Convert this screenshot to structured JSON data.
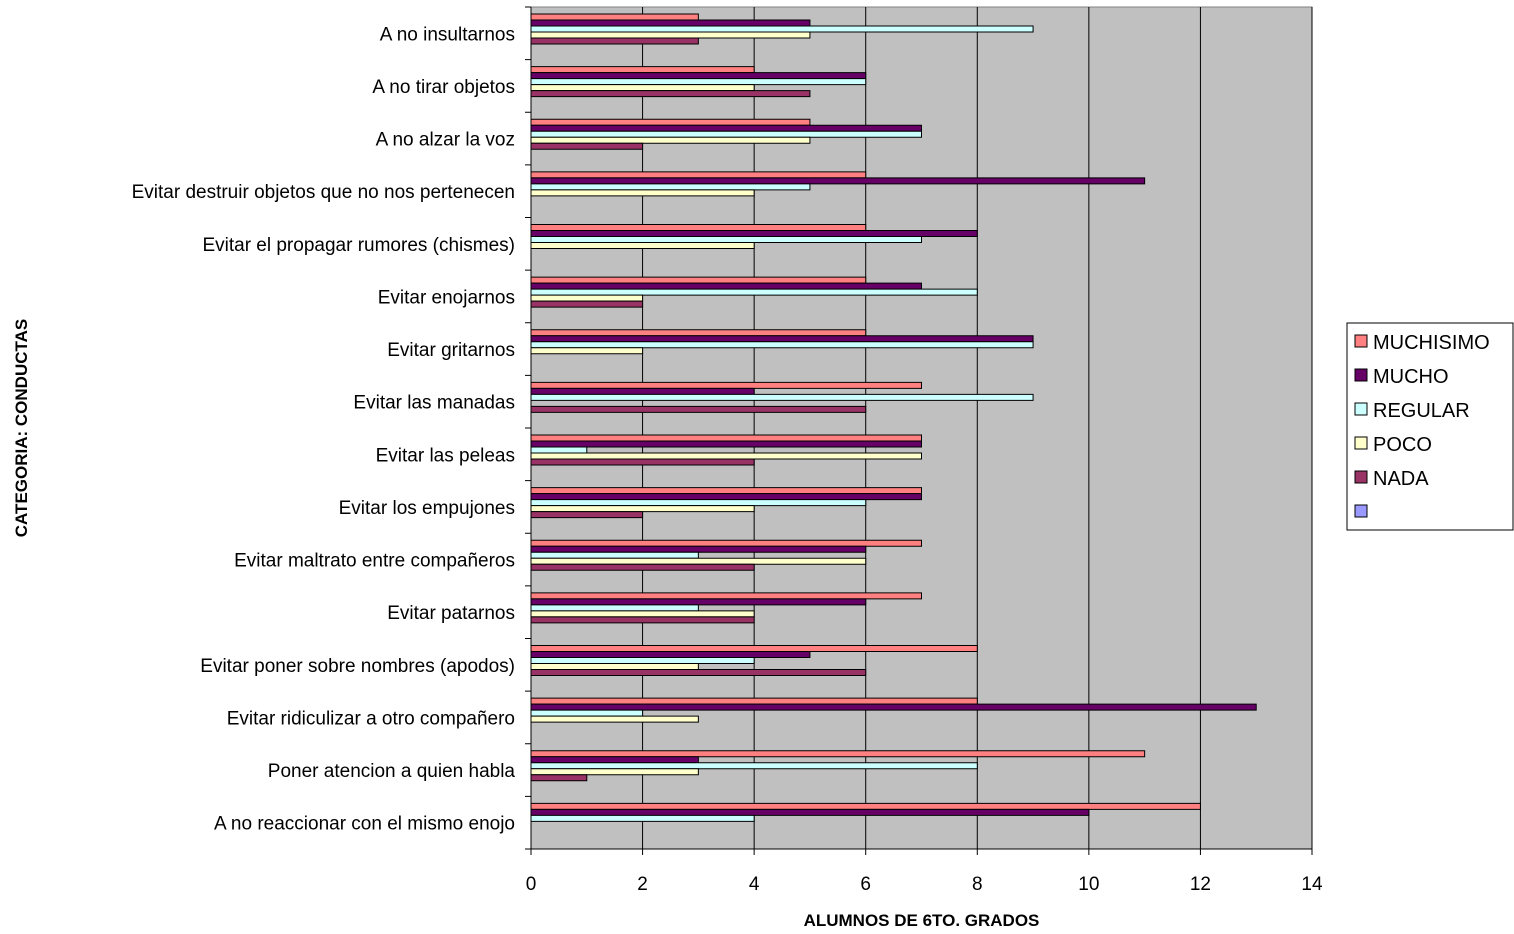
{
  "chart_data": {
    "type": "bar",
    "orientation": "horizontal",
    "title": "",
    "xlabel": "ALUMNOS DE 6TO. GRADOS",
    "ylabel": "CATEGORIA: CONDUCTAS",
    "xlim": [
      0,
      14
    ],
    "xticks": [
      0,
      2,
      4,
      6,
      8,
      10,
      12,
      14
    ],
    "grid": "vertical",
    "legend_position": "right",
    "plot_background": "#c0c0c0",
    "categories": [
      "A no insultarnos",
      "A no tirar objetos",
      "A no alzar la voz",
      "Evitar destruir objetos que no nos pertenecen",
      "Evitar el propagar rumores (chismes)",
      "Evitar enojarnos",
      "Evitar gritarnos",
      "Evitar las manadas",
      "Evitar las peleas",
      "Evitar los empujones",
      "Evitar maltrato entre compañeros",
      "Evitar patarnos",
      "Evitar poner sobre nombres (apodos)",
      "Evitar ridiculizar a otro compañero",
      "Poner atencion a quien habla",
      "A no reaccionar con el mismo enojo"
    ],
    "series": [
      {
        "name": "MUCHISIMO",
        "color": "#ff8080",
        "values": [
          3,
          4,
          5,
          6,
          6,
          6,
          6,
          7,
          7,
          7,
          7,
          7,
          8,
          8,
          11,
          12
        ]
      },
      {
        "name": "MUCHO",
        "color": "#660066",
        "values": [
          5,
          6,
          7,
          11,
          8,
          7,
          9,
          4,
          7,
          7,
          6,
          6,
          5,
          13,
          3,
          10
        ]
      },
      {
        "name": "REGULAR",
        "color": "#ccffff",
        "values": [
          9,
          6,
          7,
          5,
          7,
          8,
          9,
          9,
          1,
          6,
          3,
          3,
          4,
          2,
          8,
          4
        ]
      },
      {
        "name": "POCO",
        "color": "#ffffcc",
        "values": [
          5,
          4,
          5,
          4,
          4,
          2,
          2,
          0,
          7,
          4,
          6,
          4,
          3,
          3,
          3,
          0
        ]
      },
      {
        "name": "NADA",
        "color": "#993366",
        "values": [
          3,
          5,
          2,
          0,
          0,
          2,
          0,
          6,
          4,
          2,
          4,
          4,
          6,
          0,
          1,
          0
        ]
      },
      {
        "name": "",
        "color": "#9999ff",
        "values": [
          0,
          0,
          0,
          0,
          0,
          0,
          0,
          0,
          0,
          0,
          0,
          0,
          0,
          0,
          0,
          0
        ]
      }
    ]
  }
}
